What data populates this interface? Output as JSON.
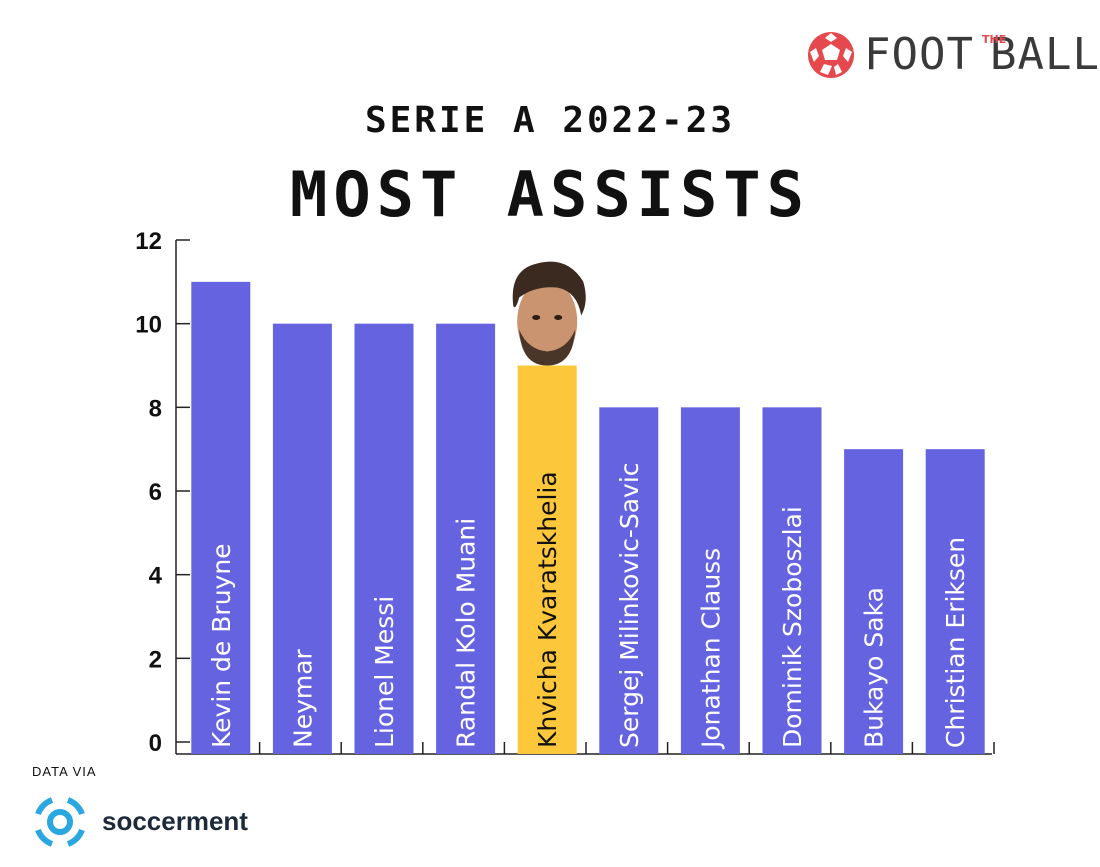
{
  "brand": {
    "name_left": "FOOT",
    "name_mid": "THE",
    "name_right": "BALL",
    "color": "#e5484d"
  },
  "chart_data": {
    "type": "bar",
    "title": "MOST ASSISTS",
    "subtitle": "SERIE A 2022-23",
    "xlabel": "",
    "ylabel": "",
    "ylim": [
      0,
      12
    ],
    "yticks": [
      0,
      2,
      4,
      6,
      8,
      10,
      12
    ],
    "grid": false,
    "categories": [
      "Kevin de Bruyne",
      "Neymar",
      "Lionel Messi",
      "Randal Kolo Muani",
      "Khvicha Kvaratskhelia",
      "Sergej Milinkovic-Savic",
      "Jonathan Clauss",
      "Dominik Szoboszlai",
      "Bukayo Saka",
      "Christian Eriksen"
    ],
    "values": [
      11,
      10,
      10,
      10,
      9,
      8,
      8,
      8,
      7,
      7
    ],
    "highlight": "Khvicha Kvaratskhelia",
    "colors": {
      "bar": "#6663e0",
      "highlight": "#fcc73a",
      "axis": "#222222"
    }
  },
  "source": {
    "label": "DATA VIA",
    "name": "soccerment",
    "color": "#2aa7e0"
  }
}
